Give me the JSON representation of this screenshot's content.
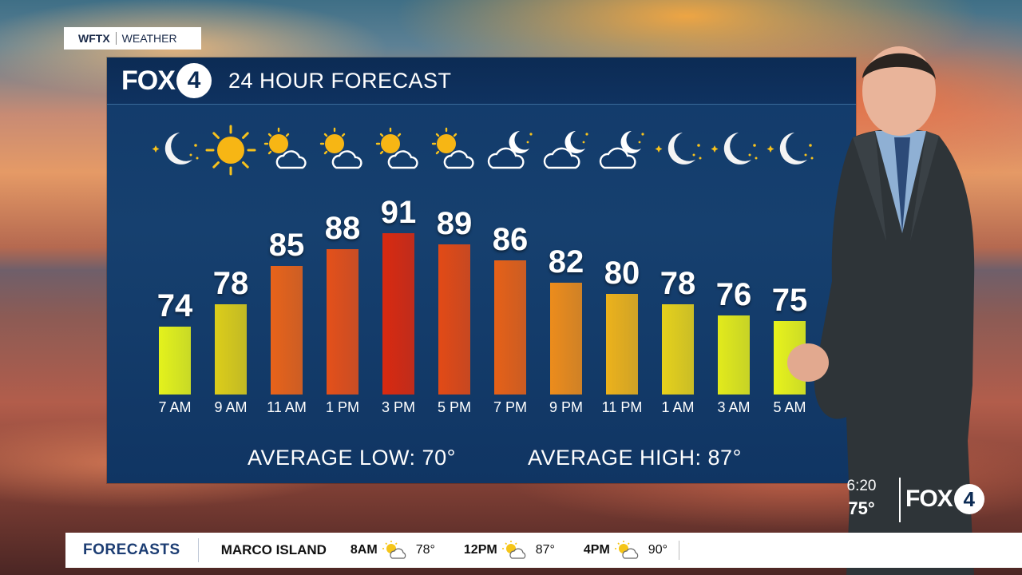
{
  "tag": {
    "station": "WFTX",
    "section": "WEATHER"
  },
  "logo": {
    "fox": "FOX",
    "four": "4"
  },
  "header": {
    "title": "24 HOUR FORECAST"
  },
  "forecast": [
    {
      "time": "7 AM",
      "temp": "74",
      "icon": "moon-stars-icon",
      "color": "#e4f21c"
    },
    {
      "time": "9 AM",
      "temp": "78",
      "icon": "sun-icon",
      "color": "#dccd1a"
    },
    {
      "time": "11 AM",
      "temp": "85",
      "icon": "partly-cloudy-icon",
      "color": "#e8631a"
    },
    {
      "time": "1 PM",
      "temp": "88",
      "icon": "partly-cloudy-icon",
      "color": "#e4501a"
    },
    {
      "time": "3 PM",
      "temp": "91",
      "icon": "partly-cloudy-icon",
      "color": "#d92a10"
    },
    {
      "time": "5 PM",
      "temp": "89",
      "icon": "partly-cloudy-icon",
      "color": "#e24a16"
    },
    {
      "time": "7 PM",
      "temp": "86",
      "icon": "cloudy-moon-icon",
      "color": "#e66118"
    },
    {
      "time": "9 PM",
      "temp": "82",
      "icon": "cloudy-moon-icon",
      "color": "#ec8c1c"
    },
    {
      "time": "11 PM",
      "temp": "80",
      "icon": "cloudy-moon-icon",
      "color": "#ecb21c"
    },
    {
      "time": "1 AM",
      "temp": "78",
      "icon": "moon-stars-icon",
      "color": "#e6d11c"
    },
    {
      "time": "3 AM",
      "temp": "76",
      "icon": "moon-stars-icon",
      "color": "#e2ea1c"
    },
    {
      "time": "5 AM",
      "temp": "75",
      "icon": "moon-stars-icon",
      "color": "#e8f31c"
    }
  ],
  "averages": {
    "low": "AVERAGE LOW:  70°",
    "high": "AVERAGE HIGH:  87°"
  },
  "clock": {
    "time": "6:20",
    "temp": "75°"
  },
  "ticker": {
    "section": "FORECASTS",
    "location": "MARCO ISLAND",
    "items": [
      {
        "time": "8AM",
        "temp": "78°",
        "icon": "partly-cloudy-icon"
      },
      {
        "time": "12PM",
        "temp": "87°",
        "icon": "partly-cloudy-icon"
      },
      {
        "time": "4PM",
        "temp": "90°",
        "icon": "partly-cloudy-icon"
      }
    ]
  }
}
